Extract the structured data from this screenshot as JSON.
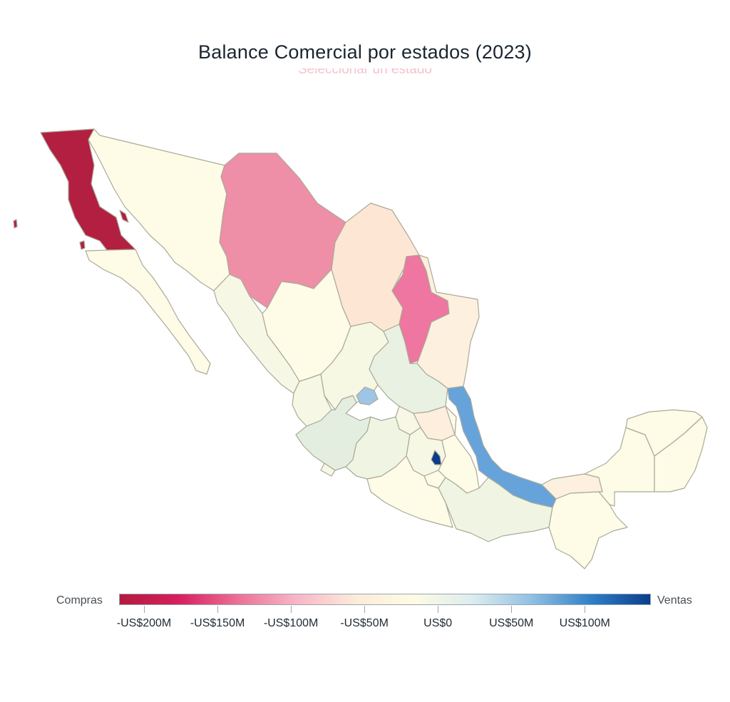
{
  "header": {
    "title": "Balance Comercial por estados (2023)",
    "subtitle": "Seleccionar un estado"
  },
  "legend": {
    "left_label": "Compras",
    "right_label": "Ventas",
    "gradient_colors": [
      "#b31b3d",
      "#d61f5e",
      "#ec6f96",
      "#f7b6c7",
      "#fdebd9",
      "#fdfbe4",
      "#dcecee",
      "#8fbfe2",
      "#2f7fc7",
      "#0b3e8a"
    ],
    "ticks": [
      {
        "label": "-US$200M",
        "value": -200
      },
      {
        "label": "-US$150M",
        "value": -150
      },
      {
        "label": "-US$100M",
        "value": -100
      },
      {
        "label": "-US$50M",
        "value": -50
      },
      {
        "label": "US$0",
        "value": 0
      },
      {
        "label": "US$50M",
        "value": 50
      },
      {
        "label": "US$100M",
        "value": 100
      }
    ],
    "min": -217,
    "max": 145
  },
  "map_data": {
    "type": "choropleth",
    "colors": {
      "strong_red": "#b31f40",
      "pink": "#ef8ea7",
      "hot_pink": "#ee76a0",
      "peach": "#fde6d4",
      "light_peach": "#fef0de",
      "cream": "#fefbe6",
      "light_green": "#f0f5e3",
      "mint": "#e4eee0",
      "light_blue": "#9ec4e6",
      "blue": "#66a3da",
      "navy": "#0b3b8b"
    },
    "states": [
      {
        "name": "Baja California",
        "color": "#b31f40"
      },
      {
        "name": "Baja California Sur",
        "color": "#fefbe6"
      },
      {
        "name": "Sonora",
        "color": "#fefbe6"
      },
      {
        "name": "Chihuahua",
        "color": "#ef8ea7"
      },
      {
        "name": "Coahuila",
        "color": "#fde6d4"
      },
      {
        "name": "Nuevo León",
        "color": "#ee76a0"
      },
      {
        "name": "Tamaulipas",
        "color": "#fef0de"
      },
      {
        "name": "Sinaloa",
        "color": "#f6f7e4"
      },
      {
        "name": "Durango",
        "color": "#fefbe6"
      },
      {
        "name": "Zacatecas",
        "color": "#f6f8e4"
      },
      {
        "name": "San Luis Potosí",
        "color": "#e9f1e2"
      },
      {
        "name": "Nayarit",
        "color": "#f6f7e4"
      },
      {
        "name": "Aguascalientes",
        "color": "#e4eee0"
      },
      {
        "name": "Guanajuato",
        "color": "#9ec4e6"
      },
      {
        "name": "Querétaro",
        "color": "#f8f6e4"
      },
      {
        "name": "Hidalgo",
        "color": "#fdeede"
      },
      {
        "name": "Jalisco",
        "color": "#e4eee0"
      },
      {
        "name": "Colima",
        "color": "#f6f7e4"
      },
      {
        "name": "Michoacán",
        "color": "#f0f5e3"
      },
      {
        "name": "Estado de México",
        "color": "#f6f7e4"
      },
      {
        "name": "Ciudad de México",
        "color": "#0b3b8b"
      },
      {
        "name": "Morelos",
        "color": "#fefbe6"
      },
      {
        "name": "Tlaxcala",
        "color": "#fefbe6"
      },
      {
        "name": "Puebla",
        "color": "#fefbe6"
      },
      {
        "name": "Veracruz",
        "color": "#66a3da"
      },
      {
        "name": "Guerrero",
        "color": "#fefbe6"
      },
      {
        "name": "Oaxaca",
        "color": "#f0f5e3"
      },
      {
        "name": "Chiapas",
        "color": "#fefbe6"
      },
      {
        "name": "Tabasco",
        "color": "#fef0de"
      },
      {
        "name": "Campeche",
        "color": "#fefbe6"
      },
      {
        "name": "Yucatán",
        "color": "#fefbe6"
      },
      {
        "name": "Quintana Roo",
        "color": "#fefbe6"
      }
    ]
  }
}
